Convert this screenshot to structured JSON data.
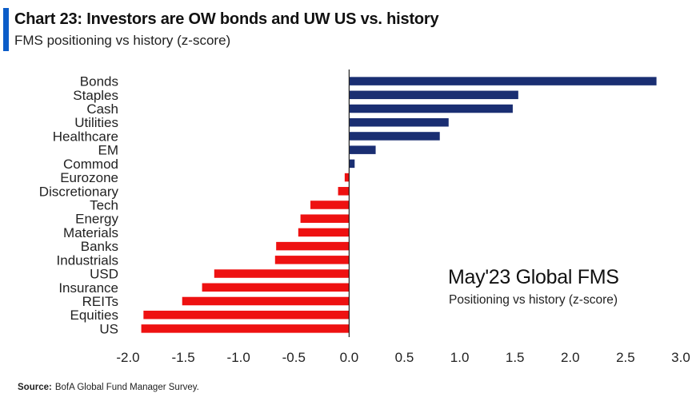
{
  "header": {
    "title": "Chart 23: Investors are OW bonds and UW US vs. history",
    "subtitle": "FMS positioning vs history (z-score)"
  },
  "annotation": {
    "main": "May'23 Global FMS",
    "sub": "Positioning vs history (z-score)"
  },
  "source": {
    "label": "Source:",
    "text": "BofA Global Fund Manager Survey."
  },
  "colors": {
    "positive": "#1a2e72",
    "negative": "#ee1111",
    "accent": "#0b5cc8",
    "axis": "#222222"
  },
  "chart_data": {
    "type": "bar",
    "orientation": "horizontal",
    "categories": [
      "Bonds",
      "Staples",
      "Cash",
      "Utilities",
      "Healthcare",
      "EM",
      "Commod",
      "Eurozone",
      "Discretionary",
      "Tech",
      "Energy",
      "Materials",
      "Banks",
      "Industrials",
      "USD",
      "Insurance",
      "REITs",
      "Equities",
      "US"
    ],
    "values": [
      2.78,
      1.53,
      1.48,
      0.9,
      0.82,
      0.24,
      0.05,
      -0.04,
      -0.1,
      -0.35,
      -0.44,
      -0.46,
      -0.66,
      -0.67,
      -1.22,
      -1.33,
      -1.51,
      -1.86,
      -1.88
    ],
    "xlim": [
      -2.0,
      3.0
    ],
    "xticks": [
      "-2.0",
      "-1.5",
      "-1.0",
      "-0.5",
      "0.0",
      "0.5",
      "1.0",
      "1.5",
      "2.0",
      "2.5",
      "3.0"
    ],
    "xtick_values": [
      -2.0,
      -1.5,
      -1.0,
      -0.5,
      0.0,
      0.5,
      1.0,
      1.5,
      2.0,
      2.5,
      3.0
    ],
    "grid": false,
    "legend": "none"
  }
}
